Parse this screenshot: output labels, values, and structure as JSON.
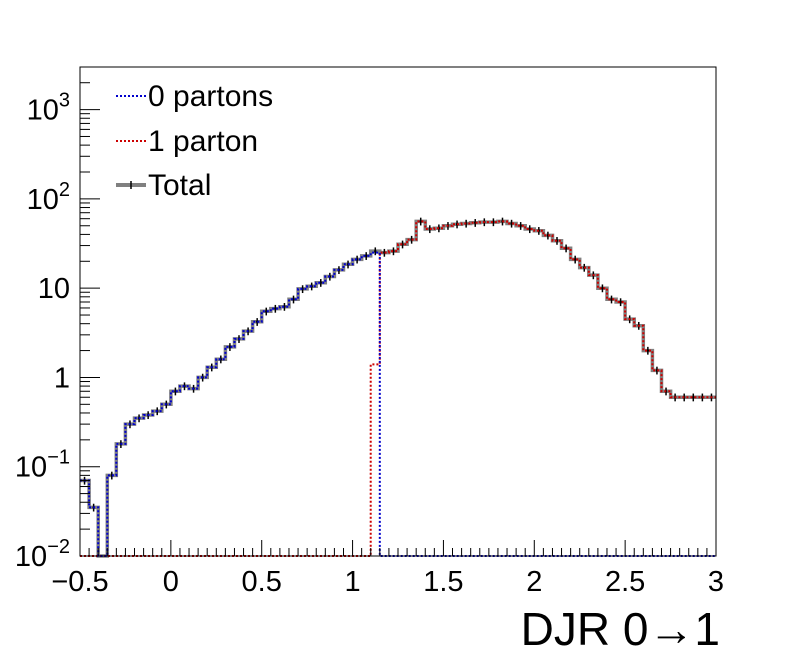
{
  "chart_data": {
    "type": "line",
    "title": "",
    "xlabel": "DJR 0→1",
    "ylabel": "",
    "xlim": [
      -0.5,
      3.0
    ],
    "ylim": [
      0.01,
      3000
    ],
    "yscale": "log",
    "grid": false,
    "legend_position": "top-left",
    "bin_width": 0.05,
    "x": [
      -0.475,
      -0.425,
      -0.375,
      -0.325,
      -0.275,
      -0.225,
      -0.175,
      -0.125,
      -0.075,
      -0.025,
      0.025,
      0.075,
      0.125,
      0.175,
      0.225,
      0.275,
      0.325,
      0.375,
      0.425,
      0.475,
      0.525,
      0.575,
      0.625,
      0.675,
      0.725,
      0.775,
      0.825,
      0.875,
      0.925,
      0.975,
      1.025,
      1.075,
      1.125,
      1.175,
      1.225,
      1.275,
      1.325,
      1.375,
      1.425,
      1.475,
      1.525,
      1.575,
      1.625,
      1.675,
      1.725,
      1.775,
      1.825,
      1.875,
      1.925,
      1.975,
      2.025,
      2.075,
      2.125,
      2.175,
      2.225,
      2.275,
      2.325,
      2.375,
      2.425,
      2.475,
      2.525,
      2.575,
      2.625,
      2.675,
      2.725,
      2.775,
      2.825,
      2.875,
      2.925,
      2.975
    ],
    "series": [
      {
        "name": "0 partons",
        "color": "#0000cc",
        "style": "dotted",
        "values": [
          0.07,
          0.035,
          0.01,
          0.08,
          0.18,
          0.3,
          0.35,
          0.38,
          0.42,
          0.5,
          0.7,
          0.8,
          0.75,
          1.0,
          1.3,
          1.6,
          2.2,
          2.7,
          3.3,
          4.2,
          5.5,
          5.9,
          6.2,
          7.5,
          9.8,
          10.5,
          11.5,
          13.5,
          16,
          18.5,
          21,
          23,
          25,
          0.01,
          0.01,
          0.01,
          0.01,
          0.01,
          0.01,
          0.01,
          0.01,
          0.01,
          0.01,
          0.01,
          0.01,
          0.01,
          0.01,
          0.01,
          0.01,
          0.01,
          0.01,
          0.01,
          0.01,
          0.01,
          0.01,
          0.01,
          0.01,
          0.01,
          0.01,
          0.01,
          0.01,
          0.01,
          0.01,
          0.01,
          0.01,
          0.01,
          0.01,
          0.01,
          0.01,
          0.01
        ]
      },
      {
        "name": "1 parton",
        "color": "#cc0000",
        "style": "dotted",
        "values": [
          0.01,
          0.01,
          0.01,
          0.01,
          0.01,
          0.01,
          0.01,
          0.01,
          0.01,
          0.01,
          0.01,
          0.01,
          0.01,
          0.01,
          0.01,
          0.01,
          0.01,
          0.01,
          0.01,
          0.01,
          0.01,
          0.01,
          0.01,
          0.01,
          0.01,
          0.01,
          0.01,
          0.01,
          0.01,
          0.01,
          0.01,
          0.01,
          1.4,
          25,
          26,
          31,
          35,
          56,
          46,
          47,
          50,
          52,
          53,
          54,
          55,
          55,
          56,
          53,
          50,
          46,
          44,
          39,
          34,
          28,
          21,
          17,
          14,
          10,
          7.5,
          7,
          4.5,
          3.8,
          2.0,
          1.2,
          0.7,
          0.6,
          0.6,
          0.6,
          0.6,
          0.6
        ]
      },
      {
        "name": "Total",
        "color": "#808080",
        "style": "solid",
        "values": [
          0.07,
          0.035,
          0.01,
          0.08,
          0.18,
          0.3,
          0.35,
          0.38,
          0.42,
          0.5,
          0.7,
          0.8,
          0.75,
          1.0,
          1.3,
          1.6,
          2.2,
          2.7,
          3.3,
          4.2,
          5.5,
          5.9,
          6.2,
          7.5,
          9.8,
          10.5,
          11.5,
          13.5,
          16,
          18.5,
          21,
          23,
          26,
          25,
          26,
          31,
          35,
          56,
          46,
          47,
          50,
          52,
          53,
          54,
          55,
          55,
          56,
          53,
          50,
          46,
          44,
          39,
          34,
          28,
          21,
          17,
          14,
          10,
          7.5,
          7,
          4.5,
          3.8,
          2.0,
          1.2,
          0.7,
          0.6,
          0.6,
          0.6,
          0.6,
          0.6
        ]
      }
    ],
    "x_ticks": [
      {
        "value": -0.5,
        "label": "−0.5"
      },
      {
        "value": 0,
        "label": "0"
      },
      {
        "value": 0.5,
        "label": "0.5"
      },
      {
        "value": 1,
        "label": "1"
      },
      {
        "value": 1.5,
        "label": "1.5"
      },
      {
        "value": 2,
        "label": "2"
      },
      {
        "value": 2.5,
        "label": "2.5"
      },
      {
        "value": 3,
        "label": "3"
      }
    ],
    "y_ticks": [
      {
        "value": 0.01,
        "base": "10",
        "exp": "−2"
      },
      {
        "value": 0.1,
        "base": "10",
        "exp": "−1"
      },
      {
        "value": 1,
        "base": "1",
        "exp": ""
      },
      {
        "value": 10,
        "base": "10",
        "exp": ""
      },
      {
        "value": 100,
        "base": "10",
        "exp": "2"
      },
      {
        "value": 1000,
        "base": "10",
        "exp": "3"
      }
    ]
  }
}
